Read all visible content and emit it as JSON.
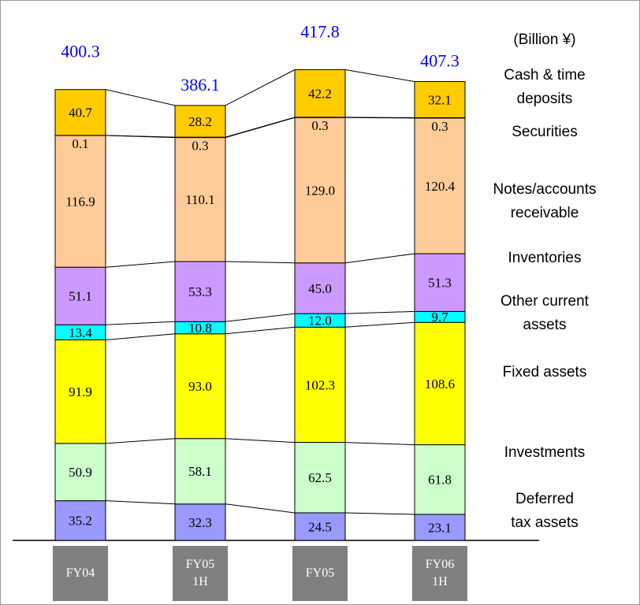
{
  "chart_data": {
    "type": "stacked_bar",
    "title": "(Billion ¥)",
    "categories": [
      "FY04",
      "FY05\n1H",
      "FY05",
      "FY06\n1H"
    ],
    "totals": [
      400.3,
      386.1,
      417.8,
      407.3
    ],
    "ylim": [
      0,
      465
    ],
    "series": [
      {
        "name": "Deferred\ntax assets",
        "color": "#9999ff",
        "values": [
          35.2,
          32.3,
          24.5,
          23.1
        ],
        "value_labels": [
          "35.2",
          "32.3",
          "24.5",
          "23.1"
        ]
      },
      {
        "name": "Investments",
        "color": "#ccffcc",
        "values": [
          50.9,
          58.1,
          62.5,
          61.8
        ],
        "value_labels": [
          "50.9",
          "58.1",
          "62.5",
          "61.8"
        ]
      },
      {
        "name": "Fixed assets",
        "color": "#ffff00",
        "values": [
          91.9,
          93.0,
          102.3,
          108.6
        ],
        "value_labels": [
          "91.9",
          "93.0",
          "102.3",
          "108.6"
        ]
      },
      {
        "name": "Other current\nassets",
        "color": "#00ffff",
        "values": [
          13.4,
          10.8,
          12.0,
          9.7
        ],
        "value_labels": [
          "13.4",
          "10.8",
          "12.0",
          "9.7"
        ]
      },
      {
        "name": "Inventories",
        "color": "#cc99ff",
        "values": [
          51.1,
          53.3,
          45.0,
          51.3
        ],
        "value_labels": [
          "51.1",
          "53.3",
          "45.0",
          "51.3"
        ]
      },
      {
        "name": "Notes/accounts\nreceivable",
        "color": "#ffcc99",
        "values": [
          116.9,
          110.1,
          129.0,
          120.4
        ],
        "value_labels": [
          "116.9",
          "110.1",
          "129.0",
          "120.4"
        ]
      },
      {
        "name": "Securities",
        "color": "#996633",
        "values": [
          0.1,
          0.3,
          0.3,
          0.3
        ],
        "value_labels": [
          "0.1",
          "0.3",
          "0.3",
          "0.3"
        ]
      },
      {
        "name": "Cash & time\ndeposits",
        "color": "#ffcc00",
        "values": [
          40.7,
          28.2,
          42.2,
          32.1
        ],
        "value_labels": [
          "40.7",
          "28.2",
          "42.2",
          "32.1"
        ]
      }
    ]
  }
}
